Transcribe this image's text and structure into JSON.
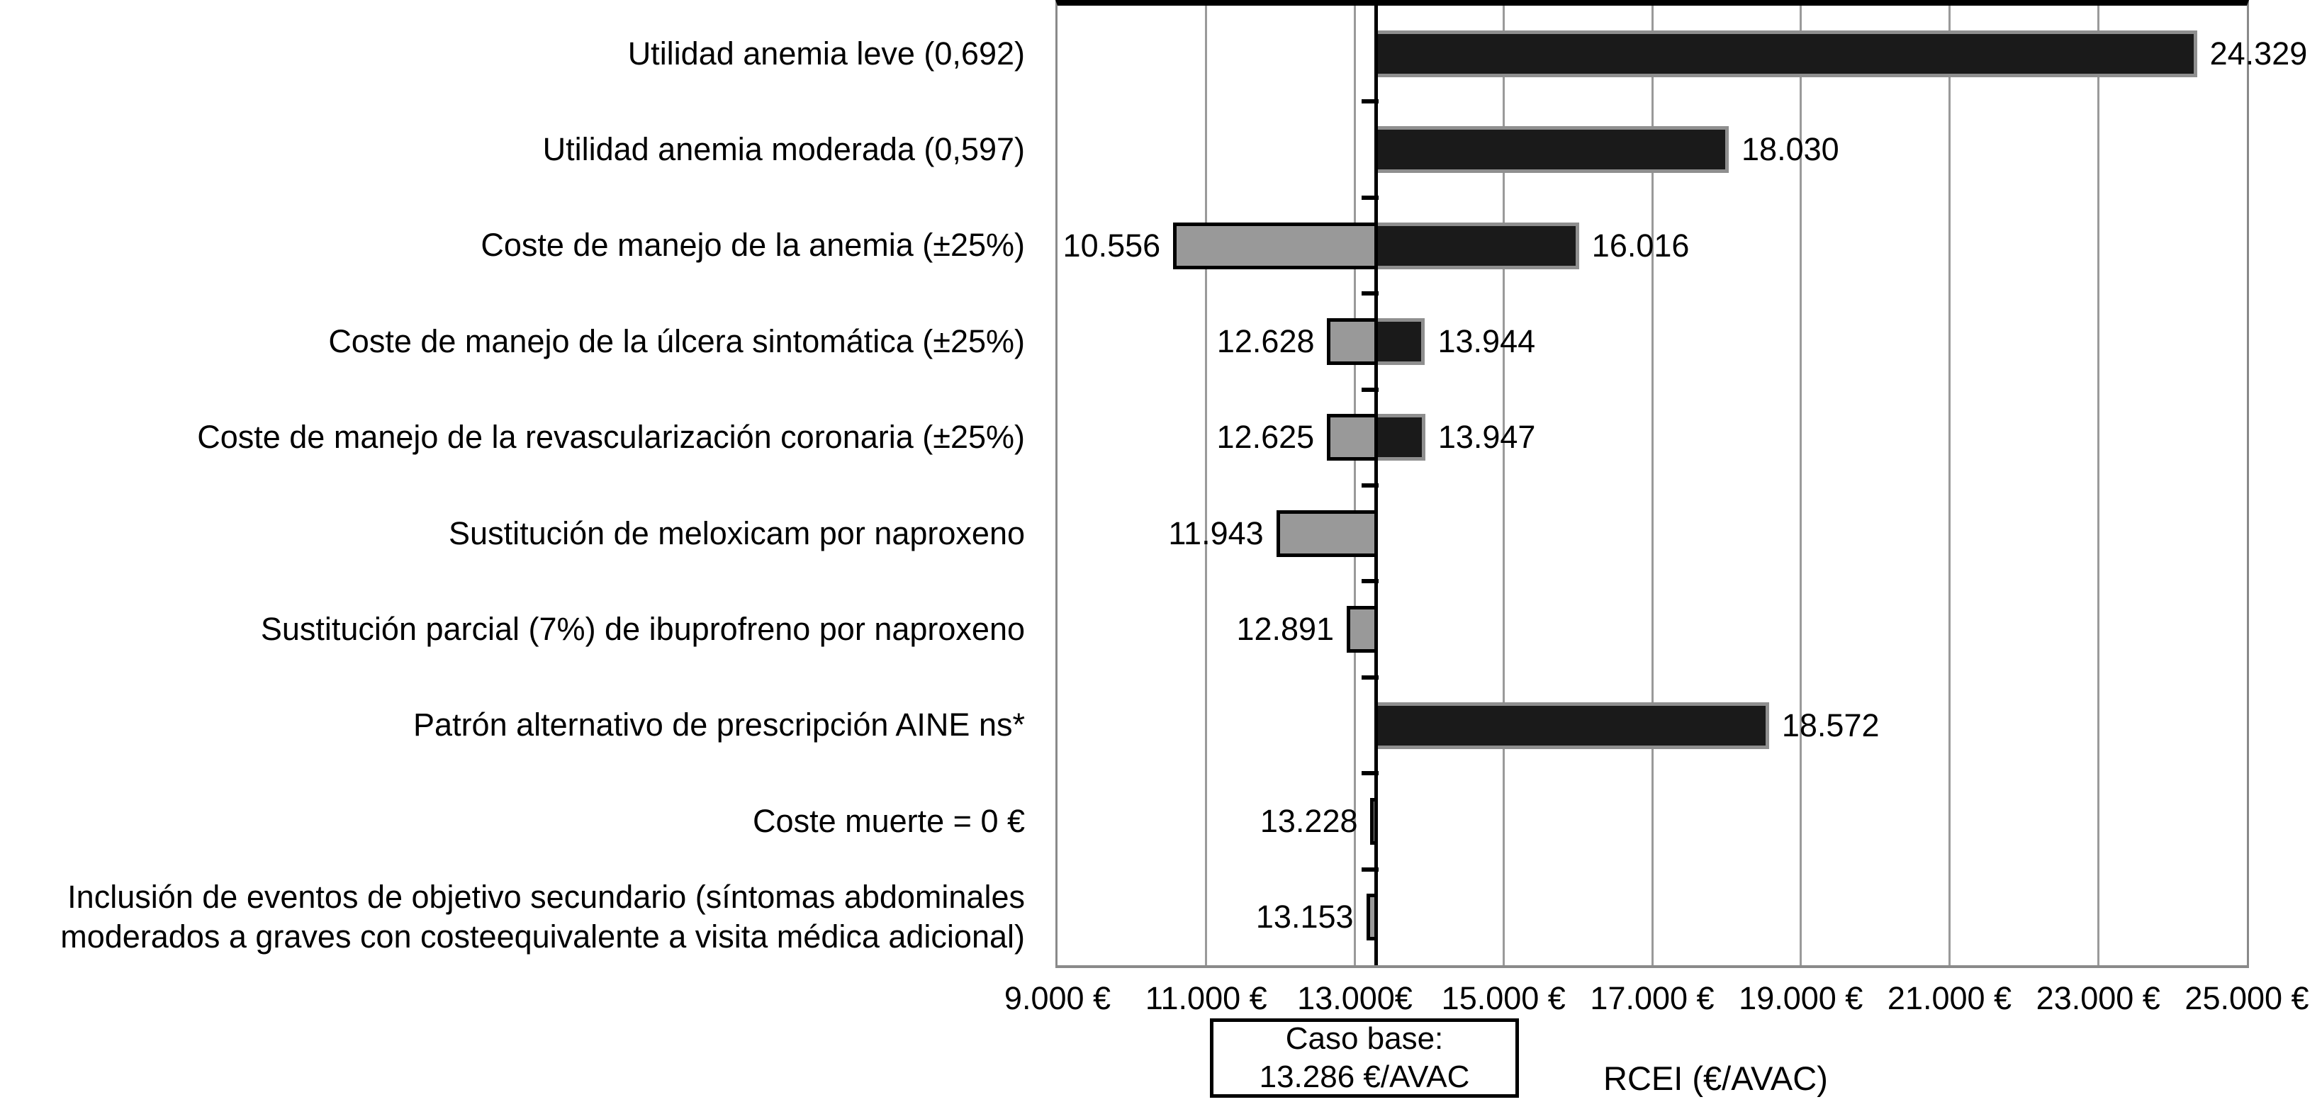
{
  "chart_data": {
    "type": "bar",
    "subtype": "tornado",
    "title": "",
    "xlabel": "RCEI (€/AVAC)",
    "xlim": [
      9000,
      25000
    ],
    "grid": true,
    "base_case": {
      "value": 13286,
      "line1": "Caso base:",
      "line2": "13.286 €/AVAC"
    },
    "x_ticks": [
      {
        "value": 9000,
        "label": "9.000 €"
      },
      {
        "value": 11000,
        "label": "11.000 €"
      },
      {
        "value": 13000,
        "label": "13.000€"
      },
      {
        "value": 15000,
        "label": "15.000 €"
      },
      {
        "value": 17000,
        "label": "17.000 €"
      },
      {
        "value": 19000,
        "label": "19.000 €"
      },
      {
        "value": 21000,
        "label": "21.000 €"
      },
      {
        "value": 23000,
        "label": "23.000 €"
      },
      {
        "value": 25000,
        "label": "25.000 €"
      }
    ],
    "rows": [
      {
        "category": "Utilidad anemia leve (0,692)",
        "low": null,
        "low_label": "",
        "high": 24329,
        "high_label": "24.329"
      },
      {
        "category": "Utilidad anemia moderada (0,597)",
        "low": null,
        "low_label": "",
        "high": 18030,
        "high_label": "18.030"
      },
      {
        "category": "Coste de manejo de la anemia (±25%)",
        "low": 10556,
        "low_label": "10.556",
        "high": 16016,
        "high_label": "16.016"
      },
      {
        "category": "Coste de manejo de la úlcera sintomática (±25%)",
        "low": 12628,
        "low_label": "12.628",
        "high": 13944,
        "high_label": "13.944"
      },
      {
        "category": "Coste de manejo de la revascularización coronaria (±25%)",
        "low": 12625,
        "low_label": "12.625",
        "high": 13947,
        "high_label": "13.947"
      },
      {
        "category": "Sustitución de meloxicam por naproxeno",
        "low": 11943,
        "low_label": "11.943",
        "high": null,
        "high_label": ""
      },
      {
        "category": "Sustitución parcial (7%) de ibuprofreno por naproxeno",
        "low": 12891,
        "low_label": "12.891",
        "high": null,
        "high_label": ""
      },
      {
        "category": "Patrón alternativo de prescripción AINE ns*",
        "low": null,
        "low_label": "",
        "high": 18572,
        "high_label": "18.572"
      },
      {
        "category": "Coste muerte = 0 €",
        "low": 13228,
        "low_label": "13.228",
        "high": null,
        "high_label": ""
      },
      {
        "category": "Inclusión de eventos de objetivo secundario (síntomas abdominales\nmoderados  a graves con costeequivalente a visita médica adicional)",
        "low": 13153,
        "low_label": "13.153",
        "high": null,
        "high_label": ""
      }
    ],
    "colors": {
      "low_fill": "#999999",
      "low_border": "#000000",
      "high_fill": "#1a1a1a",
      "high_border": "#8f8f8f",
      "gridline": "#9a9a9a",
      "axis": "#000000",
      "background": "#ffffff"
    },
    "legend": null
  }
}
